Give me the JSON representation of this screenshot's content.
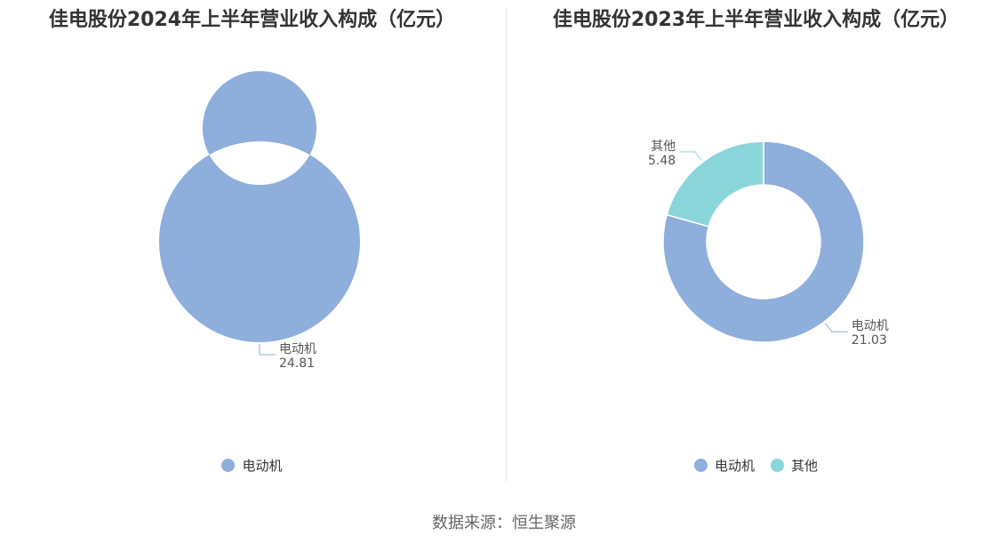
{
  "colors": {
    "电动机": "#8eaedb",
    "其他": "#8ad5da"
  },
  "chart_data": [
    {
      "type": "pie",
      "title": "佳电股份2024年上半年营业收入构成（亿元）",
      "categories": [
        "电动机"
      ],
      "values": [
        24.81
      ],
      "legend": [
        "电动机"
      ]
    },
    {
      "type": "pie",
      "title": "佳电股份2023年上半年营业收入构成（亿元）",
      "categories": [
        "电动机",
        "其他"
      ],
      "values": [
        21.03,
        5.48
      ],
      "legend": [
        "电动机",
        "其他"
      ]
    }
  ],
  "footer": {
    "source": "数据来源：恒生聚源"
  }
}
